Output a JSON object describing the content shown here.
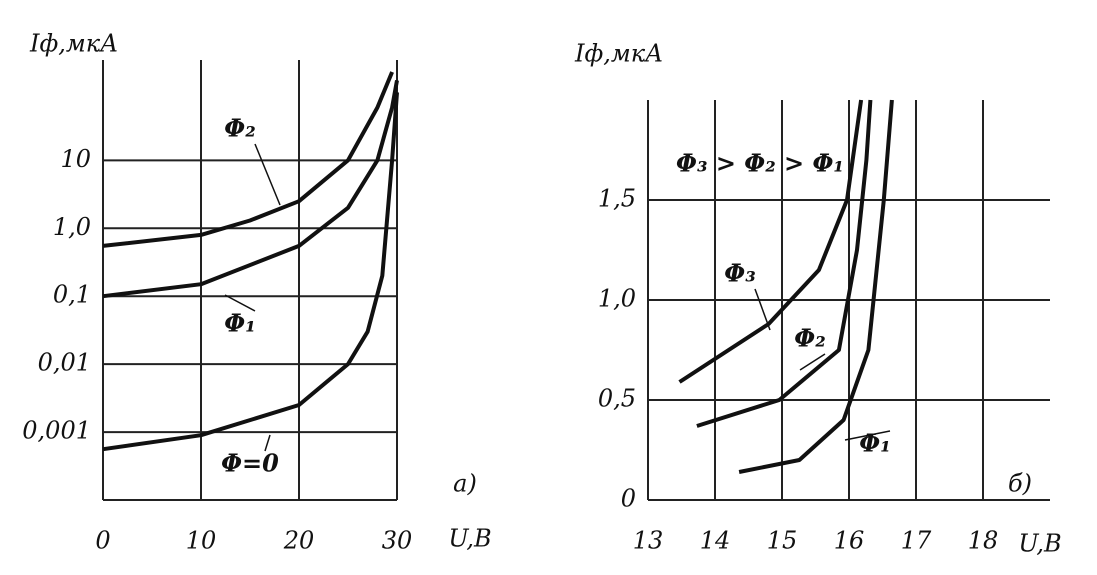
{
  "chart_data": [
    {
      "type": "line",
      "ylabel": "Iф,мкА",
      "xlabel": "U,B",
      "annotation": "а)",
      "log_y": true,
      "grid": true,
      "color": "#111",
      "xlim": [
        0,
        30
      ],
      "xticks": [
        0,
        10,
        20,
        30
      ],
      "ylim": [
        0.0001,
        300
      ],
      "yticks": [
        {
          "value": 0.001,
          "label": "0,001"
        },
        {
          "value": 0.01,
          "label": "0,01"
        },
        {
          "value": 0.1,
          "label": "0,1"
        },
        {
          "value": 1,
          "label": "1,0"
        },
        10
      ],
      "series": [
        {
          "name": "Φ₂",
          "x": [
            0,
            10,
            15,
            20,
            25,
            28,
            29.5
          ],
          "values": [
            0.55,
            0.8,
            1.3,
            2.5,
            10,
            60,
            200
          ]
        },
        {
          "name": "Φ₁",
          "x": [
            0,
            10,
            20,
            25,
            28,
            29.5,
            30
          ],
          "values": [
            0.1,
            0.15,
            0.55,
            2,
            10,
            60,
            150
          ]
        },
        {
          "name": "Φ=0",
          "x": [
            0,
            10,
            20,
            25,
            27,
            28.5,
            29.5,
            30
          ],
          "values": [
            0.00056,
            0.0009,
            0.0025,
            0.01,
            0.03,
            0.2,
            10,
            100
          ]
        }
      ]
    },
    {
      "type": "line",
      "ylabel": "Iф,мкА",
      "xlabel": "U,B",
      "annotation": "б)",
      "note": "Φ₃ > Φ₂ > Φ₁",
      "log_y": false,
      "grid": true,
      "color": "#111",
      "xlim": [
        13,
        19
      ],
      "xticks": [
        13,
        14,
        15,
        16,
        17,
        18
      ],
      "ylim": [
        0,
        2
      ],
      "yticks": [
        0,
        {
          "value": 0.5,
          "label": "0,5"
        },
        {
          "value": 1,
          "label": "1,0"
        },
        {
          "value": 1.5,
          "label": "1,5"
        }
      ],
      "series": [
        {
          "name": "Φ₃",
          "x": [
            13.47,
            14.8,
            15.55,
            15.97,
            16.18
          ],
          "values": [
            0.59,
            0.88,
            1.15,
            1.5,
            2.0
          ]
        },
        {
          "name": "Φ₂",
          "x": [
            13.73,
            14.96,
            15.85,
            16.12,
            16.26,
            16.32
          ],
          "values": [
            0.37,
            0.5,
            0.75,
            1.25,
            1.7,
            2.0
          ]
        },
        {
          "name": "Φ₁",
          "x": [
            14.36,
            15.26,
            15.92,
            16.29,
            16.52,
            16.64
          ],
          "values": [
            0.14,
            0.2,
            0.4,
            0.75,
            1.5,
            2.0
          ]
        }
      ]
    }
  ]
}
